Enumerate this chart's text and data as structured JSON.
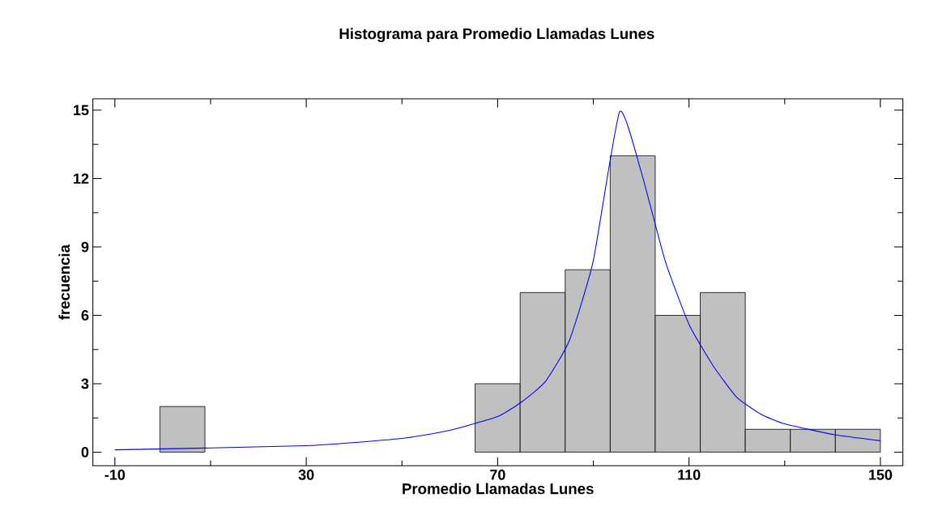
{
  "chart_data": {
    "type": "histogram",
    "title": "Histograma para Promedio Llamadas Lunes",
    "xlabel": "Promedio Llamadas Lunes",
    "ylabel": "frecuencia",
    "xlim": [
      -14.6,
      154.7
    ],
    "ylim": [
      -0.6,
      15.5
    ],
    "xticks": [
      -10,
      30,
      70,
      110,
      150
    ],
    "yticks": [
      0,
      3,
      6,
      9,
      12,
      15
    ],
    "grid": false,
    "series": [
      {
        "color": "#c0c0c0",
        "bins": [
          -10,
          -0.59,
          8.82,
          18.24,
          27.65,
          37.06,
          46.47,
          55.88,
          65.29,
          74.71,
          84.12,
          93.53,
          102.94,
          112.35,
          121.76,
          131.18,
          140.59,
          150
        ],
        "values": [
          0,
          2,
          0,
          0,
          0,
          0,
          0,
          0,
          3,
          7,
          8,
          13,
          6,
          7,
          1,
          1,
          1
        ]
      },
      {
        "type": "line",
        "color": "#0000ff",
        "x": [
          -10,
          30,
          50,
          60,
          70,
          75,
          80,
          85,
          90,
          95.5,
          100,
          105,
          110,
          115,
          120,
          125,
          130,
          140,
          150
        ],
        "values": [
          0.1,
          0.28,
          0.6,
          0.96,
          1.56,
          2.2,
          3.1,
          4.9,
          8.4,
          14.93,
          12.3,
          8.4,
          5.6,
          3.8,
          2.4,
          1.67,
          1.24,
          0.78,
          0.5
        ]
      }
    ]
  }
}
